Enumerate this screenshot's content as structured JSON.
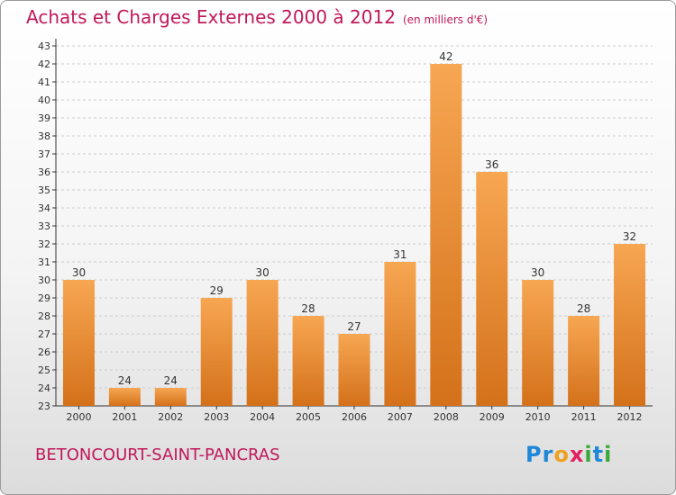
{
  "header": {
    "title": "Achats et Charges Externes 2000 à 2012",
    "unit": "(en milliers d'€)"
  },
  "footer": {
    "commune": "BETONCOURT-SAINT-PANCRAS",
    "brand": {
      "name": "Proxiti",
      "letters": [
        {
          "ch": "P",
          "color": "#1e88d8"
        },
        {
          "ch": "r",
          "color": "#1e88d8"
        },
        {
          "ch": "o",
          "color": "#f0a020"
        },
        {
          "ch": "x",
          "color": "#e02060"
        },
        {
          "ch": "i",
          "color": "#3aa838"
        },
        {
          "ch": "t",
          "color": "#1e88d8"
        },
        {
          "ch": "i",
          "color": "#3aa838"
        }
      ]
    }
  },
  "colors": {
    "title": "#c0185a",
    "bar_light": "#f7a652",
    "bar_dark": "#d4711a",
    "grid": "#cccccc",
    "axis": "#333333"
  },
  "chart_data": {
    "type": "bar",
    "title": "Achats et Charges Externes 2000 à 2012",
    "subtitle": "(en milliers d'€)",
    "categories": [
      "2000",
      "2001",
      "2002",
      "2003",
      "2004",
      "2005",
      "2006",
      "2007",
      "2008",
      "2009",
      "2010",
      "2011",
      "2012"
    ],
    "values": [
      30,
      24,
      24,
      29,
      30,
      28,
      27,
      31,
      42,
      36,
      30,
      28,
      32
    ],
    "ylim": [
      23,
      43
    ],
    "ytick_step": 1,
    "grid": true,
    "data_labels": true
  }
}
